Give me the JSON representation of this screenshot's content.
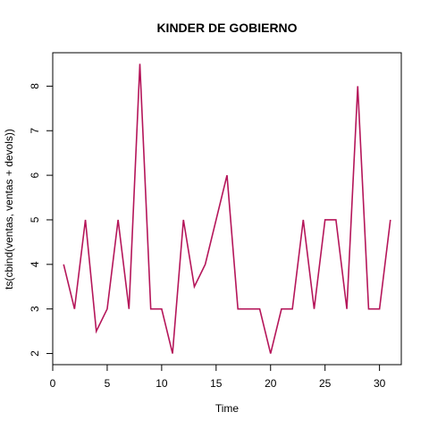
{
  "chart_data": {
    "type": "line",
    "title": "KINDER DE GOBIERNO",
    "xlabel": "Time",
    "ylabel": "ts(cbind(ventas, ventas + devols))",
    "xlim": [
      0,
      32
    ],
    "ylim": [
      1.75,
      8.75
    ],
    "x_ticks": [
      0,
      5,
      10,
      15,
      20,
      25,
      30
    ],
    "y_ticks": [
      2,
      3,
      4,
      5,
      6,
      7,
      8
    ],
    "grid": false,
    "series": [
      {
        "color": "#b5165a",
        "x": [
          1,
          2,
          3,
          4,
          5,
          6,
          7,
          8,
          9,
          10,
          11,
          12,
          13,
          14,
          15,
          16,
          17,
          18,
          19,
          20,
          21,
          22,
          23,
          24,
          25,
          26,
          27,
          28,
          29,
          30,
          31
        ],
        "values": [
          4,
          3,
          5,
          2.5,
          3,
          5,
          3,
          8.5,
          3,
          3,
          2,
          5,
          3.5,
          4,
          5,
          6,
          3,
          3,
          3,
          2,
          3,
          3,
          5,
          3,
          5,
          5,
          3,
          8,
          3,
          3,
          5
        ]
      }
    ]
  }
}
